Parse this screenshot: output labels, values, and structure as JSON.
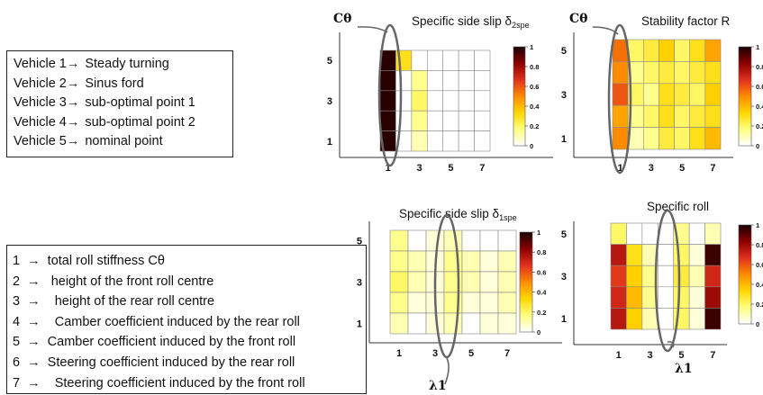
{
  "vehicle_legend": [
    {
      "label": "Vehicle 1→",
      "desc": "Steady turning"
    },
    {
      "label": "Vehicle 2→",
      "desc": "Sinus ford"
    },
    {
      "label": "Vehicle 3→",
      "desc": "sub-optimal point 1"
    },
    {
      "label": "Vehicle 4→",
      "desc": "sub-optimal point 2"
    },
    {
      "label": "Vehicle 5→",
      "desc": "nominal point"
    }
  ],
  "parameter_legend": [
    "1  →  total roll stiffness Cθ",
    "2  →   height of the front roll centre",
    "3  →    height of the rear roll centre",
    "4  →    Camber coefficient induced by the rear roll",
    "5  →  Camber coefficient induced by the front roll",
    "6  →  Steering coefficient induced by the rear roll",
    "7  →    Steering coefficient induced by the front roll"
  ],
  "annotations": {
    "c_theta": "Cθ",
    "lambda1": "λ1"
  },
  "colors": {
    "scale": [
      "#ffffff",
      "#ffff80",
      "#ffd700",
      "#ff8c00",
      "#e0301e",
      "#8b0000",
      "#1a0000"
    ]
  },
  "chart_data": [
    {
      "type": "heatmap",
      "title": "Specific side slip δ",
      "title_subscript": "2spe",
      "xticks": [
        "1",
        "3",
        "5",
        "7"
      ],
      "yticks": [
        "5",
        "3",
        "1"
      ],
      "colorbar_ticks": [
        "1",
        "0.8",
        "0.6",
        "0.4",
        "0.2",
        "0"
      ],
      "value_range": [
        0,
        1
      ],
      "rows": 5,
      "cols": 7,
      "values": [
        [
          0.98,
          0.3,
          0.0,
          0.0,
          0.0,
          0.0,
          0.0
        ],
        [
          0.98,
          0.0,
          0.15,
          0.0,
          0.0,
          0.0,
          0.0
        ],
        [
          0.98,
          0.0,
          0.2,
          0.0,
          0.0,
          0.0,
          0.0
        ],
        [
          0.98,
          0.0,
          0.15,
          0.0,
          0.0,
          0.0,
          0.0
        ],
        [
          0.98,
          0.0,
          0.1,
          0.0,
          0.0,
          0.0,
          0.0
        ]
      ],
      "highlight": "c_theta"
    },
    {
      "type": "heatmap",
      "title": "Stability factor R",
      "xticks": [
        "1",
        "3",
        "5",
        "7"
      ],
      "yticks": [
        "5",
        "3",
        "1"
      ],
      "colorbar_ticks": [
        "1",
        "0.8",
        "0.6",
        "0.4",
        "0.2",
        "0"
      ],
      "value_range": [
        0,
        1
      ],
      "rows": 5,
      "cols": 7,
      "values": [
        [
          0.55,
          0.2,
          0.25,
          0.35,
          0.2,
          0.3,
          0.45
        ],
        [
          0.5,
          0.15,
          0.2,
          0.25,
          0.2,
          0.25,
          0.3
        ],
        [
          0.6,
          0.2,
          0.15,
          0.3,
          0.25,
          0.2,
          0.35
        ],
        [
          0.45,
          0.15,
          0.2,
          0.3,
          0.2,
          0.25,
          0.3
        ],
        [
          0.5,
          0.1,
          0.15,
          0.25,
          0.2,
          0.3,
          0.4
        ]
      ],
      "highlight": "c_theta"
    },
    {
      "type": "heatmap",
      "title": "Specific side slip δ",
      "title_subscript": "1spe",
      "xticks": [
        "1",
        "3",
        "5",
        "7"
      ],
      "yticks": [
        "5",
        "3",
        "1"
      ],
      "colorbar_ticks": [
        "1",
        "0.8",
        "0.6",
        "0.4",
        "0.2",
        "0"
      ],
      "value_range": [
        0,
        1
      ],
      "rows": 5,
      "cols": 7,
      "values": [
        [
          0.15,
          0.0,
          0.05,
          0.1,
          0.0,
          0.0,
          0.0
        ],
        [
          0.15,
          0.1,
          0.05,
          0.15,
          0.1,
          0.05,
          0.1
        ],
        [
          0.2,
          0.1,
          0.05,
          0.15,
          0.1,
          0.05,
          0.1
        ],
        [
          0.15,
          0.05,
          0.05,
          0.15,
          0.05,
          0.05,
          0.1
        ],
        [
          0.1,
          0.0,
          0.05,
          0.1,
          0.0,
          0.05,
          0.05
        ]
      ],
      "highlight": "lambda1"
    },
    {
      "type": "heatmap",
      "title": "Specific roll",
      "xticks": [
        "1",
        "3",
        "5",
        "7"
      ],
      "yticks": [
        "5",
        "3",
        "1"
      ],
      "colorbar_ticks": [
        "1",
        "0.8",
        "0.6",
        "0.4",
        "0.2",
        "0"
      ],
      "value_range": [
        0,
        1
      ],
      "rows": 5,
      "cols": 7,
      "values": [
        [
          0.2,
          0.0,
          0.0,
          0.0,
          0.15,
          0.0,
          0.1
        ],
        [
          0.75,
          0.3,
          0.1,
          0.0,
          0.2,
          0.05,
          0.95
        ],
        [
          0.65,
          0.35,
          0.15,
          0.0,
          0.25,
          0.1,
          0.7
        ],
        [
          0.7,
          0.4,
          0.15,
          0.0,
          0.2,
          0.05,
          0.8
        ],
        [
          0.75,
          0.35,
          0.1,
          0.0,
          0.2,
          0.05,
          0.95
        ]
      ],
      "highlight": "lambda1"
    }
  ]
}
